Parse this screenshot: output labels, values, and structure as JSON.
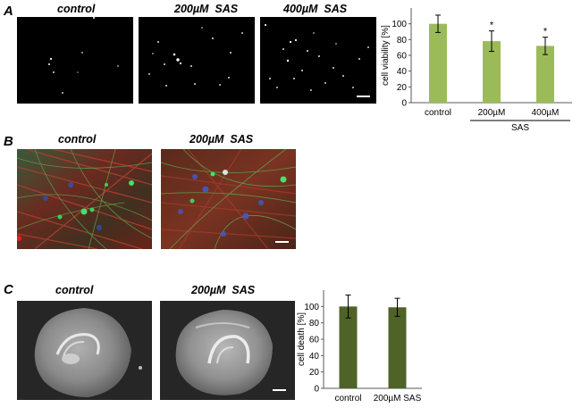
{
  "panels": {
    "A": {
      "letter": "A",
      "images": [
        {
          "title": "control"
        },
        {
          "title": "200µM  SAS"
        },
        {
          "title": "400µM  SAS"
        }
      ]
    },
    "B": {
      "letter": "B",
      "images": [
        {
          "title": "control"
        },
        {
          "title": "200µM  SAS"
        }
      ]
    },
    "C": {
      "letter": "C",
      "images": [
        {
          "title": "control"
        },
        {
          "title": "200µM  SAS"
        }
      ]
    }
  },
  "chart_data": [
    {
      "type": "bar",
      "panel": "A",
      "categories": [
        "control",
        "200µM",
        "400µM"
      ],
      "group_label": "SAS",
      "values": [
        100,
        78,
        72
      ],
      "errors": [
        11,
        13,
        11
      ],
      "significance": [
        "",
        "*",
        "*"
      ],
      "ylabel": "cell viability [%]",
      "ylim": [
        0,
        120
      ],
      "yticks": [
        0,
        20,
        40,
        60,
        80,
        100
      ],
      "grid": false,
      "bar_color": "#9bbb59"
    },
    {
      "type": "bar",
      "panel": "C",
      "categories": [
        "control",
        "200µM SAS"
      ],
      "values": [
        100,
        99
      ],
      "errors": [
        14,
        11
      ],
      "ylabel": "cell death [%]",
      "ylim": [
        0,
        120
      ],
      "yticks": [
        0,
        20,
        40,
        60,
        80,
        100
      ],
      "grid": false,
      "bar_color": "#4f6228"
    }
  ]
}
